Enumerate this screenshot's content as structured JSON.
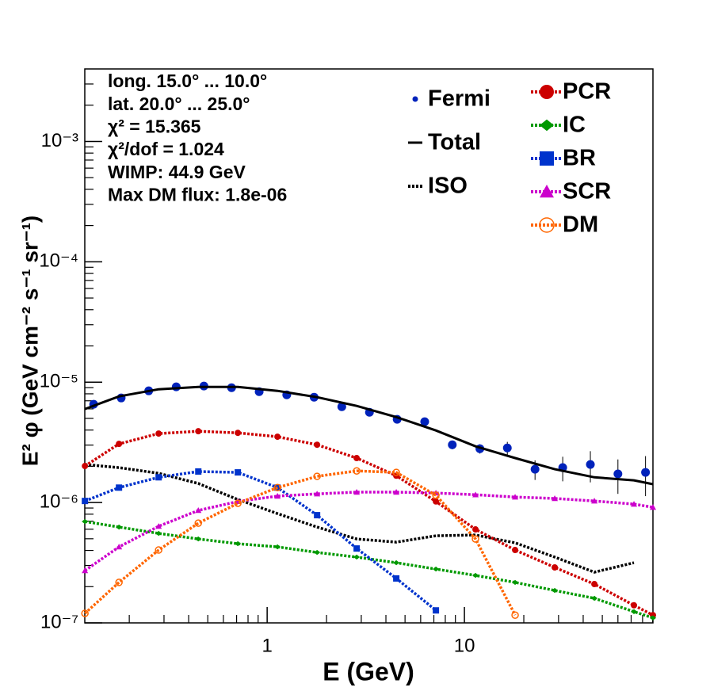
{
  "chart_data": {
    "type": "line",
    "xlabel": "E (GeV)",
    "ylabel": "E² φ (GeV cm⁻² s⁻¹ sr⁻¹)",
    "annotations": [
      "long. 15.0° ... 10.0°",
      "lat. 20.0° ... 25.0°",
      "χ² = 15.365",
      "χ²/dof = 1.024",
      "WIMP: 44.9 GeV",
      "Max DM flux: 1.8e-06"
    ],
    "xscale": "log",
    "yscale": "log",
    "xlim": [
      0.119,
      90.3
    ],
    "ylim": [
      1e-07,
      0.004
    ],
    "xticks": [
      1,
      10
    ],
    "xminorticks": [
      0.2,
      0.3,
      0.4,
      0.5,
      0.6,
      0.7,
      0.8,
      0.9,
      2,
      3,
      4,
      5,
      6,
      7,
      8,
      9,
      20,
      30,
      40,
      50,
      60,
      70,
      80,
      90
    ],
    "yticks": [
      {
        "value": 1e-07,
        "label": "10⁻⁷"
      },
      {
        "value": 1e-06,
        "label": "10⁻⁶"
      },
      {
        "value": 1e-05,
        "label": "10⁻⁵"
      },
      {
        "value": 0.0001,
        "label": "10⁻⁴"
      },
      {
        "value": 0.001,
        "label": "10⁻³"
      }
    ],
    "yminorticks": [
      2e-07,
      3e-07,
      4e-07,
      5e-07,
      6e-07,
      7e-07,
      8e-07,
      9e-07,
      2e-06,
      3e-06,
      4e-06,
      5e-06,
      6e-06,
      7e-06,
      8e-06,
      9e-06,
      2e-05,
      3e-05,
      4e-05,
      5e-05,
      6e-05,
      7e-05,
      8e-05,
      9e-05,
      0.0002,
      0.0003,
      0.0004,
      0.0005,
      0.0006,
      0.0007,
      0.0008,
      0.0009,
      0.002,
      0.003
    ],
    "series": [
      {
        "name": "Fermi",
        "color": "#0022bb",
        "marker": "circle",
        "line_style": "none",
        "x": [
          0.132,
          0.182,
          0.251,
          0.346,
          0.478,
          0.66,
          0.911,
          1.257,
          1.73,
          2.39,
          3.3,
          4.56,
          6.29,
          8.68,
          11.98,
          16.5,
          22.8,
          31.5,
          43.5,
          60.0,
          82.8
        ],
        "values": [
          6.55e-06,
          7.39e-06,
          8.47e-06,
          9.14e-06,
          9.28e-06,
          8.99e-06,
          8.34e-06,
          7.85e-06,
          7.5e-06,
          6.25e-06,
          5.62e-06,
          4.91e-06,
          4.69e-06,
          3.02e-06,
          2.8e-06,
          2.84e-06,
          1.89e-06,
          1.95e-06,
          2.07e-06,
          1.73e-06,
          1.78e-06
        ],
        "errors": [
          2e-07,
          2e-07,
          2e-07,
          2e-07,
          2e-07,
          2e-07,
          2e-07,
          2e-07,
          2e-07,
          2e-07,
          2e-07,
          2e-07,
          3e-07,
          2.5e-07,
          2.5e-07,
          3.5e-07,
          3.5e-07,
          4.5e-07,
          6e-07,
          5.5e-07,
          6.5e-07
        ]
      },
      {
        "name": "Total",
        "color": "#000000",
        "marker": "none",
        "line_style": "solid",
        "x": [
          0.1192,
          0.1774,
          0.2818,
          0.4477,
          0.7103,
          1.128,
          1.791,
          2.843,
          4.514,
          7.169,
          11.38,
          18.07,
          28.7,
          45.57,
          72.35,
          90.32
        ],
        "values": [
          5.98e-06,
          7.61e-06,
          8.73e-06,
          9.13e-06,
          9.13e-06,
          8.47e-06,
          7.5e-06,
          6.35e-06,
          5.13e-06,
          3.97e-06,
          2.93e-06,
          2.34e-06,
          1.89e-06,
          1.62e-06,
          1.53e-06,
          1.42e-06
        ]
      },
      {
        "name": "ISO",
        "color": "#000000",
        "marker": "none",
        "line_style": "dotted",
        "x": [
          0.1192,
          0.1774,
          0.2818,
          0.4477,
          0.7103,
          1.128,
          1.791,
          2.843,
          4.514,
          7.169,
          11.38,
          18.07,
          28.7,
          45.57,
          72.35,
          90.32
        ],
        "values": [
          2.07e-06,
          1.95e-06,
          1.75e-06,
          1.44e-06,
          1.06e-06,
          8.09e-07,
          6.25e-07,
          4.98e-07,
          4.69e-07,
          5.29e-07,
          5.37e-07,
          4.62e-07,
          3.52e-07,
          2.64e-07,
          3.16e-07,
          null
        ]
      },
      {
        "name": "PCR",
        "color": "#cc0000",
        "marker": "circle",
        "line_style": "dotted",
        "x": [
          0.1192,
          0.1774,
          0.2818,
          0.4477,
          0.7103,
          1.128,
          1.791,
          2.843,
          4.514,
          7.169,
          11.38,
          18.07,
          28.7,
          45.57,
          72.35,
          90.32
        ],
        "values": [
          2.01e-06,
          3.07e-06,
          3.74e-06,
          3.91e-06,
          3.79e-06,
          3.52e-06,
          3.02e-06,
          2.34e-06,
          1.67e-06,
          1.02e-06,
          5.98e-07,
          4.03e-07,
          2.89e-07,
          2.1e-07,
          1.4e-07,
          1.16e-07
        ]
      },
      {
        "name": "IC",
        "color": "#009900",
        "marker": "diamond",
        "line_style": "dotted",
        "x": [
          0.1192,
          0.1774,
          0.2818,
          0.4477,
          0.7103,
          1.128,
          1.791,
          2.843,
          4.514,
          7.169,
          11.38,
          18.07,
          28.7,
          45.57,
          72.35,
          90.32
        ],
        "values": [
          6.95e-07,
          6.25e-07,
          5.54e-07,
          4.98e-07,
          4.55e-07,
          4.28e-07,
          3.85e-07,
          3.52e-07,
          3.16e-07,
          2.8e-07,
          2.48e-07,
          2.17e-07,
          1.86e-07,
          1.6e-07,
          1.24e-07,
          1.1e-07
        ]
      },
      {
        "name": "BR",
        "color": "#0033cc",
        "marker": "square",
        "line_style": "dotted",
        "x": [
          0.1192,
          0.1774,
          0.2818,
          0.4477,
          0.7103,
          1.128,
          1.791,
          2.843,
          4.514,
          7.169,
          11.38,
          18.07,
          28.7,
          45.57,
          72.35,
          90.32
        ],
        "values": [
          1.03e-06,
          1.33e-06,
          1.62e-06,
          1.81e-06,
          1.78e-06,
          1.33e-06,
          7.85e-07,
          4.15e-07,
          2.34e-07,
          1.27e-07,
          null,
          null,
          null,
          null,
          null,
          null
        ]
      },
      {
        "name": "SCR",
        "color": "#cc00cc",
        "marker": "triangle",
        "line_style": "dotted",
        "x": [
          0.1192,
          0.1774,
          0.2818,
          0.4477,
          0.7103,
          1.128,
          1.791,
          2.843,
          4.514,
          7.169,
          11.38,
          18.07,
          28.7,
          45.57,
          72.35,
          90.32
        ],
        "values": [
          2.72e-07,
          4.28e-07,
          6.35e-07,
          8.6e-07,
          1.02e-06,
          1.13e-06,
          1.18e-06,
          1.22e-06,
          1.22e-06,
          1.2e-06,
          1.16e-06,
          1.11e-06,
          1.08e-06,
          1.03e-06,
          9.7e-07,
          9.13e-07
        ]
      },
      {
        "name": "DM",
        "color": "#ff6600",
        "marker": "open-circle",
        "line_style": "dotted",
        "x": [
          0.1192,
          0.1774,
          0.2818,
          0.4477,
          0.7103,
          1.128,
          1.791,
          2.843,
          4.514,
          7.169,
          11.38,
          18.07,
          28.7,
          45.57,
          72.35,
          90.32
        ],
        "values": [
          1.2e-07,
          2.17e-07,
          4.03e-07,
          6.74e-07,
          9.85e-07,
          1.33e-06,
          1.65e-06,
          1.83e-06,
          1.78e-06,
          1.15e-06,
          4.98e-07,
          1.16e-07,
          null,
          null,
          null,
          null
        ]
      }
    ]
  }
}
